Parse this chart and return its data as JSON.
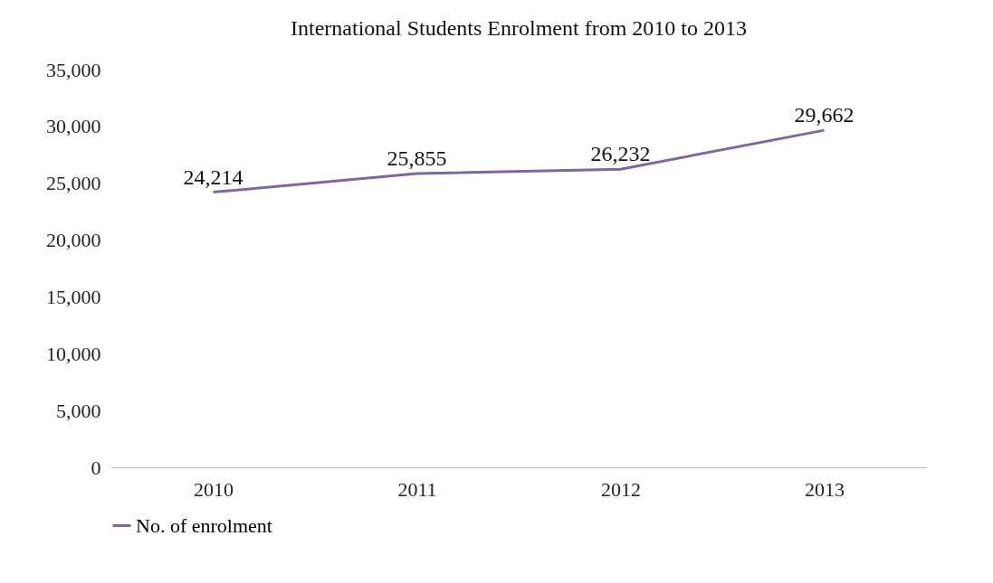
{
  "chart_data": {
    "type": "line",
    "title": "International Students Enrolment from 2010 to 2013",
    "categories": [
      "2010",
      "2011",
      "2012",
      "2013"
    ],
    "series": [
      {
        "name": "No. of enrolment",
        "color": "#7e66a0",
        "values": [
          24214,
          25855,
          26232,
          29662
        ],
        "value_labels": [
          "24,214",
          "25,855",
          "26,232",
          "29,662"
        ]
      }
    ],
    "ylim": [
      0,
      35000
    ],
    "yticks": [
      0,
      {
        "value": 5000,
        "label": "5,000"
      },
      {
        "value": 10000,
        "label": "10,000"
      },
      {
        "value": 15000,
        "label": "15,000"
      },
      {
        "value": 20000,
        "label": "20,000"
      },
      {
        "value": 25000,
        "label": "25,000"
      },
      {
        "value": 30000,
        "label": "30,000"
      },
      {
        "value": 35000,
        "label": "35,000"
      }
    ],
    "legend": "bottom",
    "marker": "none",
    "line_style": "solid",
    "grid": false
  }
}
